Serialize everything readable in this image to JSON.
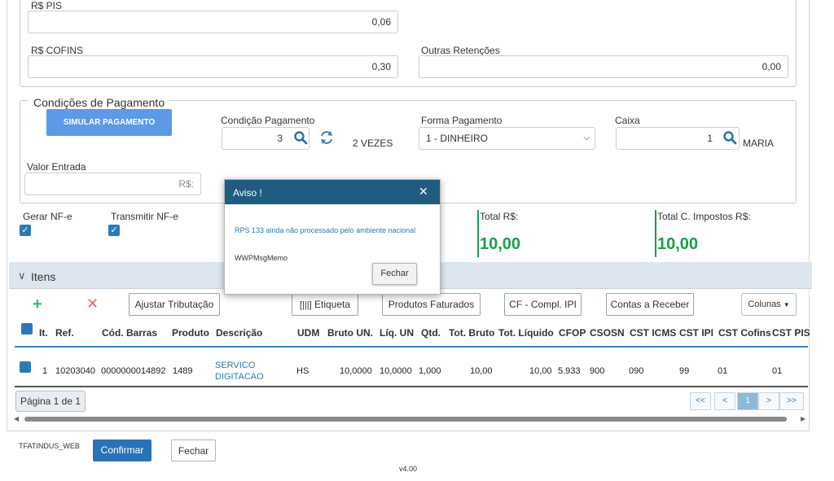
{
  "taxes": {
    "pis_label": "R$ PIS",
    "pis_value": "0,06",
    "cofins_label": "R$ COFINS",
    "cofins_value": "0,30",
    "outras_label": "Outras Retenções",
    "outras_value": "0,00"
  },
  "payment": {
    "legend": "Condições de Pagamento",
    "simulate_button": "SIMULAR PAGAMENTO",
    "condicao_label": "Condição Pagamento",
    "condicao_value": "3",
    "condicao_desc": "2 VEZES",
    "forma_label": "Forma Pagamento",
    "forma_value": "1 - DINHEIRO",
    "caixa_label": "Caixa",
    "caixa_value": "1",
    "caixa_desc": "MARIA",
    "entrada_label": "Valor Entrada",
    "entrada_value": "R$:"
  },
  "flags": {
    "gerar_label": "Gerar NF-e",
    "transmitir_label": "Transmitir NF-e"
  },
  "totals": {
    "total_label": "Total R$:",
    "total_value": "10,00",
    "total_impostos_label": "Total C. Impostos R$:",
    "total_impostos_value": "10,00",
    "accent": "#1a9e4a"
  },
  "items": {
    "panel_title": "Itens",
    "toolbar": {
      "ajustar": "Ajustar Tributação",
      "etiqueta": "Etiqueta",
      "produtos": "Produtos Faturados",
      "cf": "CF - Compl. IPI",
      "contas": "Contas a Receber",
      "colunas": "Colunas"
    },
    "columns": [
      "It.",
      "Ref.",
      "Cód. Barras",
      "Produto",
      "Descrição",
      "UDM",
      "Bruto UN.",
      "Líq. UN",
      "Qtd.",
      "Tot. Bruto",
      "Tot. Líquido",
      "CFOP",
      "CSOSN",
      "CST ICMS",
      "CST IPI",
      "CST Cofins",
      "CST PIS"
    ],
    "rows": [
      [
        "1",
        "10203040",
        "0000000014892",
        "1489",
        "SERVICO DIGITACAO",
        "HS",
        "10,0000",
        "10,0000",
        "1,000",
        "10,00",
        "10,00",
        "5.933",
        "900",
        "090",
        "99",
        "01",
        "01"
      ]
    ],
    "page_label": "Página 1 de 1",
    "pager": [
      "<<",
      "<",
      "1",
      ">",
      ">>"
    ]
  },
  "modal": {
    "title": "Aviso !",
    "message": "RPS 133 ainda não processado pelo ambiente nacional",
    "memo": "WWPMsgMemo",
    "close_button": "Fechar",
    "header_color": "#1f5c7f"
  },
  "footer": {
    "app_code": "TFATINDUS_WEB",
    "confirm_button": "Confirmar",
    "close_button": "Fechar",
    "version": "v4.00"
  }
}
